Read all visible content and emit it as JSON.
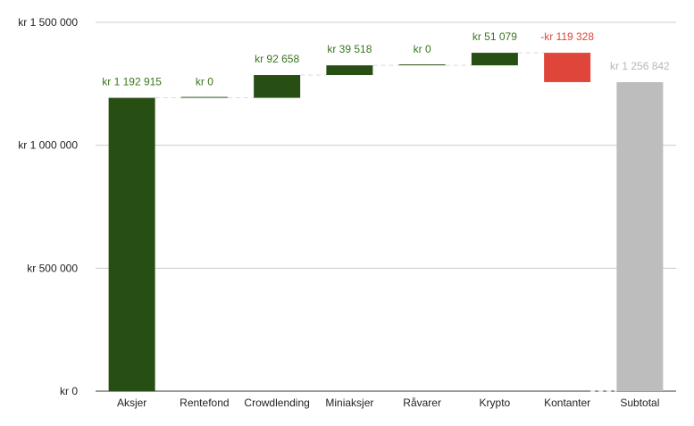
{
  "chart_data": {
    "type": "bar",
    "subtype": "waterfall",
    "categories": [
      "Aksjer",
      "Rentefond",
      "Crowdlending",
      "Miniaksjer",
      "Råvarer",
      "Krypto",
      "Kontanter",
      "Subtotal"
    ],
    "values": [
      1192915,
      0,
      92658,
      39518,
      0,
      51079,
      -119328,
      1256842
    ],
    "value_labels": [
      "kr 1 192 915",
      "kr   0",
      "kr  92 658",
      "kr  39 518",
      "kr   0",
      "kr  51 079",
      "-kr  119 328",
      "kr 1 256 842"
    ],
    "kinds": [
      "increase",
      "increase",
      "increase",
      "increase",
      "increase",
      "increase",
      "decrease",
      "total"
    ],
    "yticks": [
      0,
      500000,
      1000000,
      1500000
    ],
    "ytick_labels": [
      "kr   0",
      "kr  500 000",
      "kr 1 000 000",
      "kr 1 500 000"
    ],
    "ylim": [
      0,
      1500000
    ],
    "grid": true,
    "legend": "none",
    "colors": {
      "increase": "#274e13",
      "decrease": "#e0453a",
      "total": "#bdbdbd",
      "increase_label": "#38761d",
      "decrease_label": "#e0453a",
      "total_label": "#b7b7b7",
      "grid": "#cccccc",
      "connector": "#d9d9d9"
    }
  }
}
